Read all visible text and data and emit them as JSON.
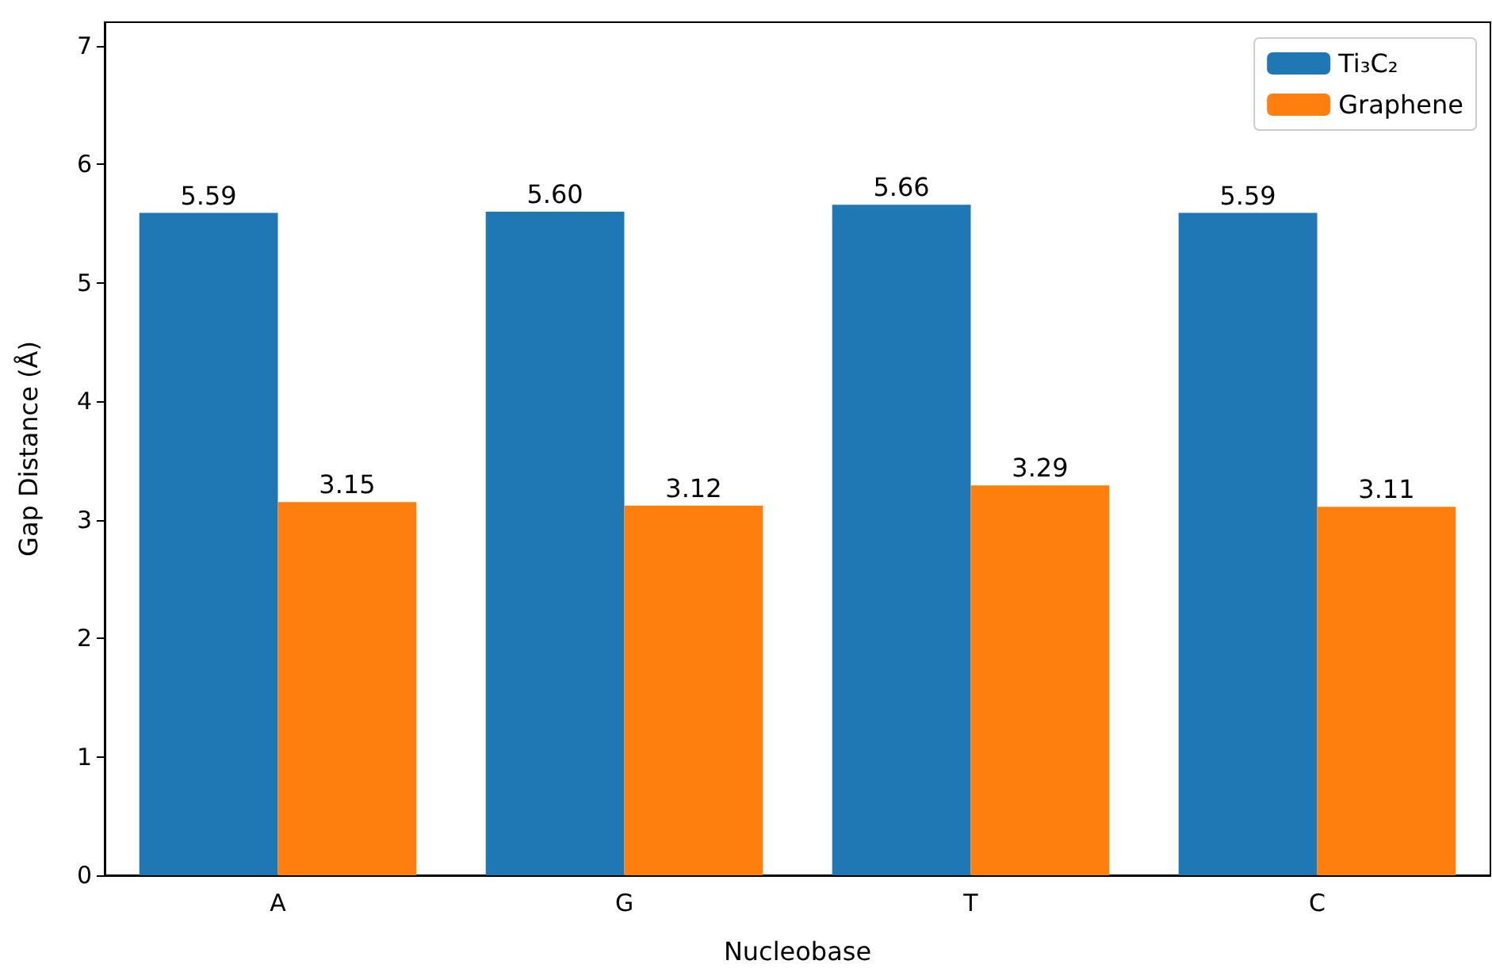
{
  "chart_data": {
    "type": "bar",
    "xlabel": "Nucleobase",
    "ylabel": "Gap Distance (Å)",
    "categories": [
      "A",
      "G",
      "T",
      "C"
    ],
    "series": [
      {
        "name": "Ti₃C₂",
        "color": "#1f77b4",
        "values": [
          5.59,
          5.6,
          5.66,
          5.59
        ],
        "value_labels": [
          "5.59",
          "5.60",
          "5.66",
          "5.59"
        ]
      },
      {
        "name": "Graphene",
        "color": "#ff7f0e",
        "values": [
          3.15,
          3.12,
          3.29,
          3.11
        ],
        "value_labels": [
          "3.15",
          "3.12",
          "3.29",
          "3.11"
        ]
      }
    ],
    "ylim": [
      0,
      7.2
    ],
    "yticks": [
      0,
      1,
      2,
      3,
      4,
      5,
      6,
      7
    ],
    "grid": false,
    "legend": "top right"
  }
}
